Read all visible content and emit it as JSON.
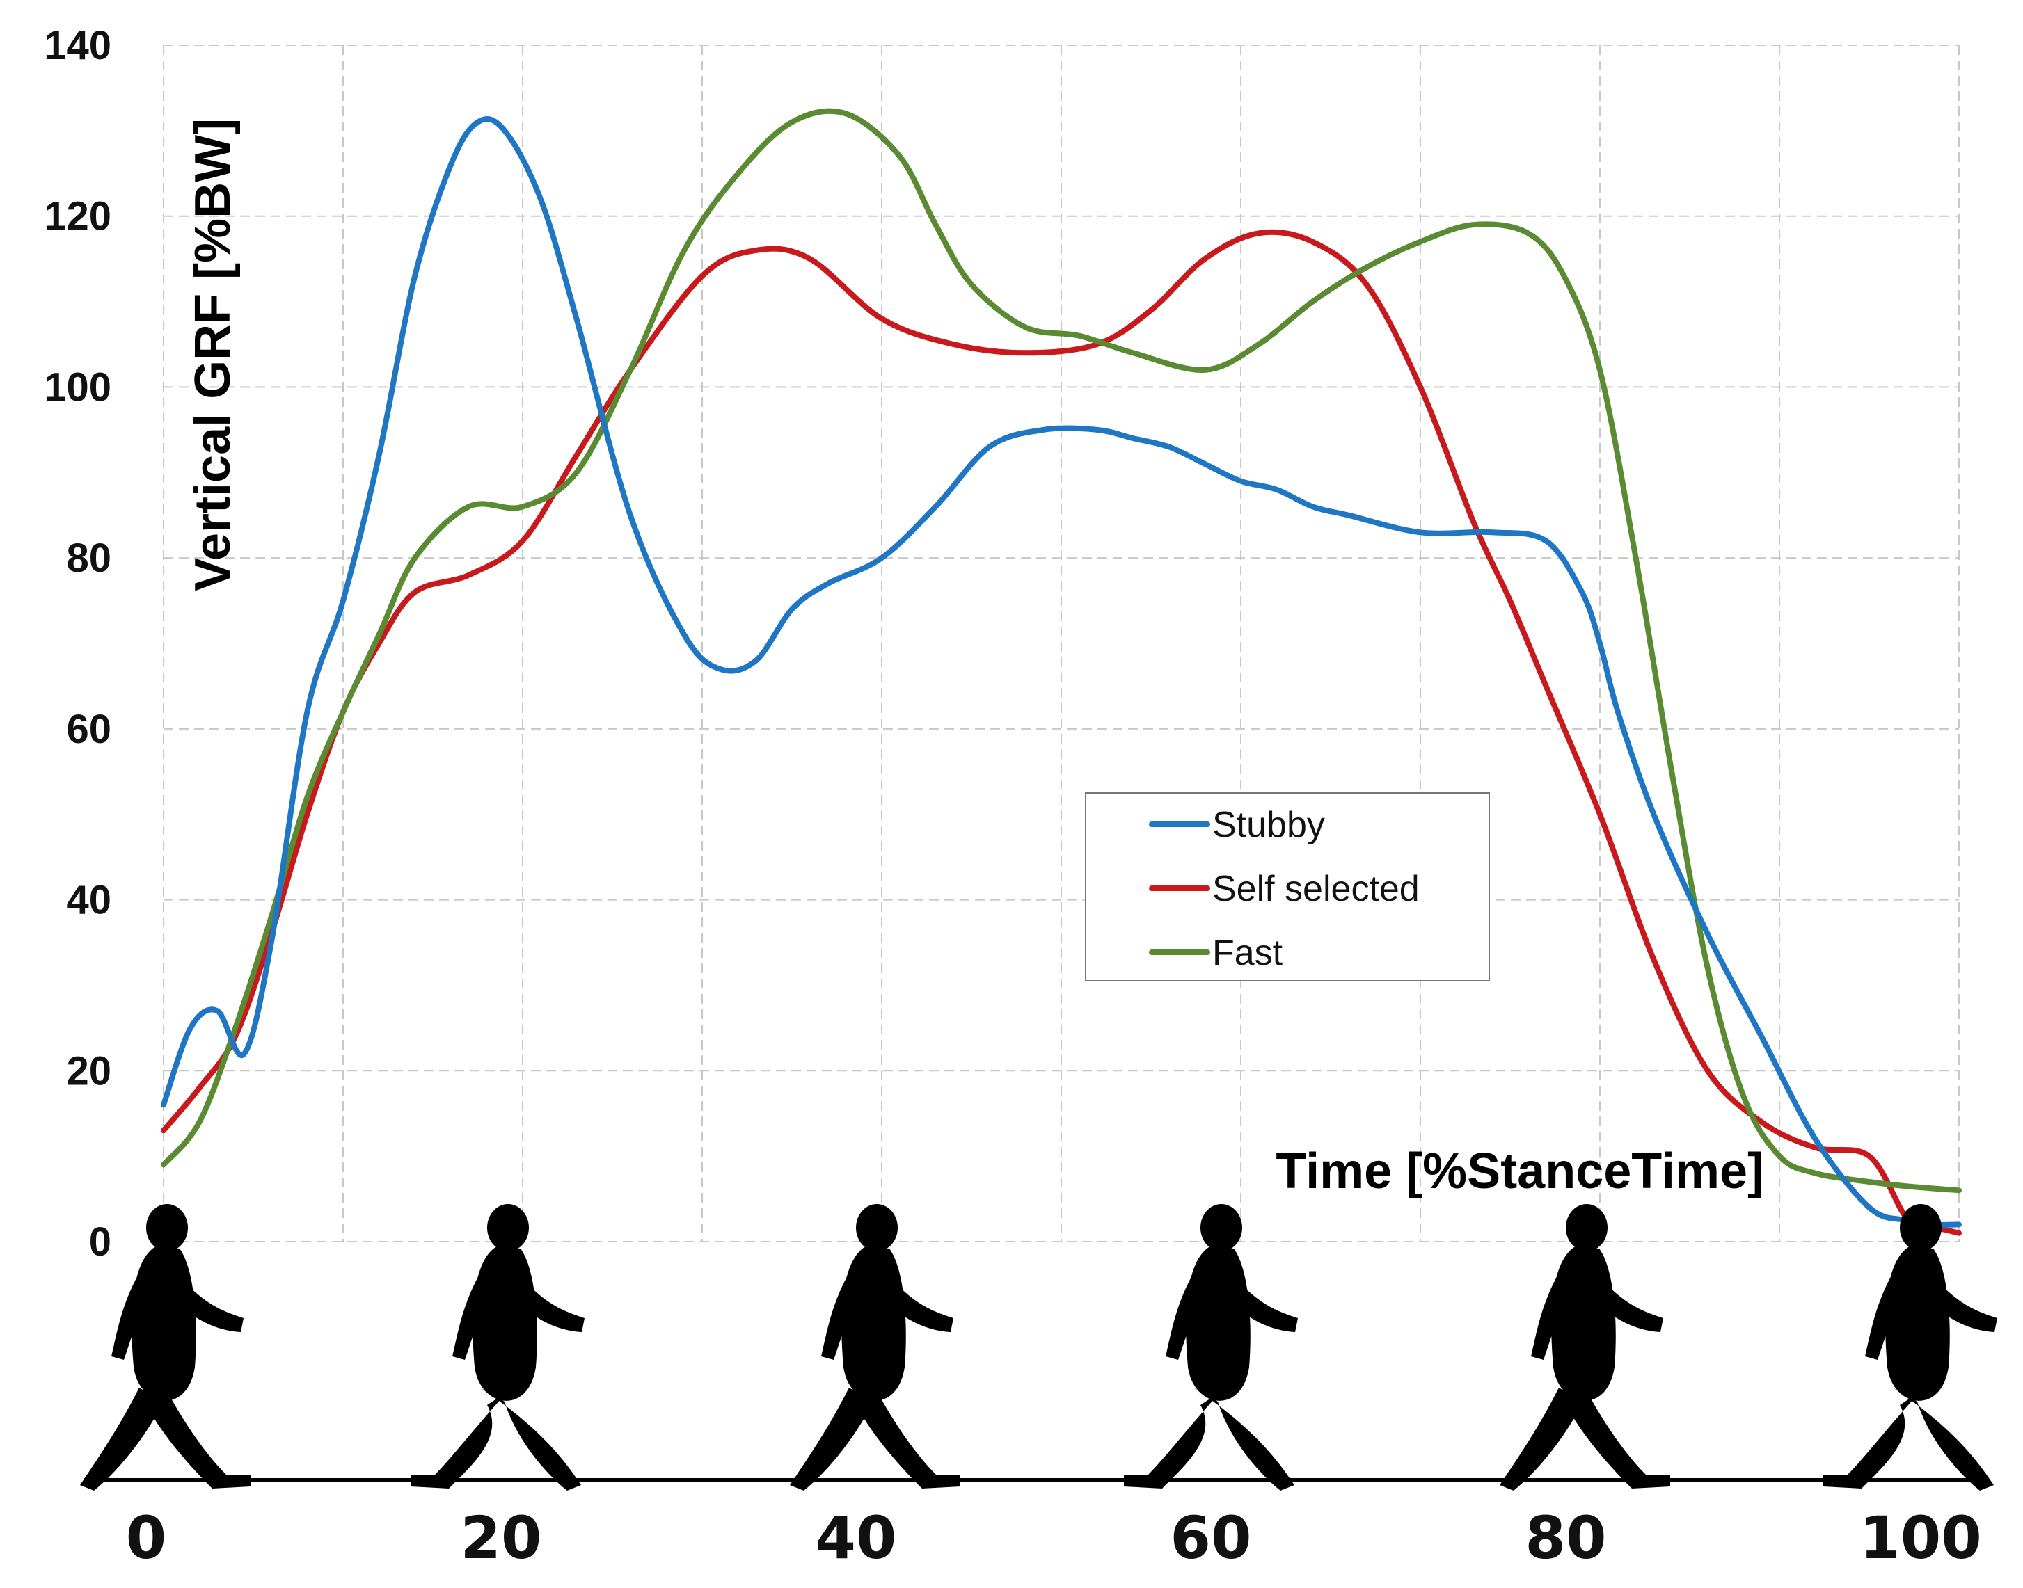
{
  "chart_data": {
    "type": "line",
    "ylabel": "Vertical GRF [%BW]",
    "xlabel": "Time [%StanceTime]",
    "xlim": [
      0,
      100
    ],
    "ylim": [
      0,
      140
    ],
    "grid": true,
    "legend_position": "center-right",
    "y_ticks": [
      "0",
      "20",
      "40",
      "60",
      "80",
      "100",
      "120",
      "140"
    ],
    "x_ticks": [
      "0",
      "20",
      "40",
      "60",
      "80",
      "100"
    ],
    "series": [
      {
        "name": "Stubby",
        "color": "#1f77c4",
        "x": [
          0,
          1.5,
          3,
          4.5,
          6,
          8,
          10,
          12,
          14,
          16,
          17.5,
          19,
          21,
          23,
          26,
          29,
          31,
          33,
          35,
          37,
          40,
          43,
          46,
          49,
          52,
          54,
          56,
          58,
          60,
          62,
          64,
          66,
          70,
          74,
          77,
          79,
          80,
          81,
          83,
          86,
          89,
          92,
          95,
          97,
          98.5,
          100
        ],
        "values": [
          16,
          25,
          27,
          22,
          35,
          62,
          75,
          92,
          113,
          126,
          131,
          130,
          122,
          108,
          85,
          71,
          67,
          68,
          74,
          77,
          80,
          86,
          93,
          95,
          95,
          94,
          93,
          91,
          89,
          88,
          86,
          85,
          83,
          83,
          82,
          76,
          70,
          62,
          50,
          36,
          24,
          12,
          4,
          2.5,
          2,
          2
        ]
      },
      {
        "name": "Self selected",
        "color": "#c8191d",
        "x": [
          0,
          2,
          4,
          6,
          8,
          10,
          12,
          14,
          17,
          20,
          23,
          26,
          30,
          33,
          36,
          40,
          44,
          48,
          52,
          55,
          58,
          61,
          64,
          67,
          70,
          73,
          75,
          77,
          80,
          83,
          86,
          89,
          92,
          95,
          97,
          98,
          99,
          100
        ],
        "values": [
          13,
          18,
          24,
          36,
          50,
          62,
          70,
          76,
          78,
          82,
          92,
          102,
          113,
          116,
          115,
          108,
          105,
          104,
          105,
          109,
          115,
          118,
          117,
          112,
          100,
          84,
          75,
          65,
          50,
          33,
          20,
          14,
          11,
          10,
          3,
          2,
          1.5,
          1
        ]
      },
      {
        "name": "Fast",
        "color": "#5a8a32",
        "x": [
          0,
          2,
          4,
          6,
          8,
          10,
          12,
          14,
          17,
          20,
          23,
          26,
          29,
          32,
          35,
          38,
          41,
          43,
          45,
          48,
          51,
          54,
          58,
          61,
          64,
          67,
          70,
          73,
          76,
          78,
          80,
          82,
          84,
          86,
          88,
          90,
          92,
          95,
          97,
          100
        ],
        "values": [
          9,
          14,
          25,
          38,
          52,
          62,
          71,
          80,
          86,
          86,
          90,
          102,
          116,
          125,
          131,
          132,
          127,
          119,
          112,
          107,
          106,
          104,
          102,
          105,
          110,
          114,
          117,
          119,
          118,
          113,
          102,
          80,
          55,
          32,
          17,
          10,
          8,
          7,
          6.5,
          6
        ]
      }
    ]
  }
}
